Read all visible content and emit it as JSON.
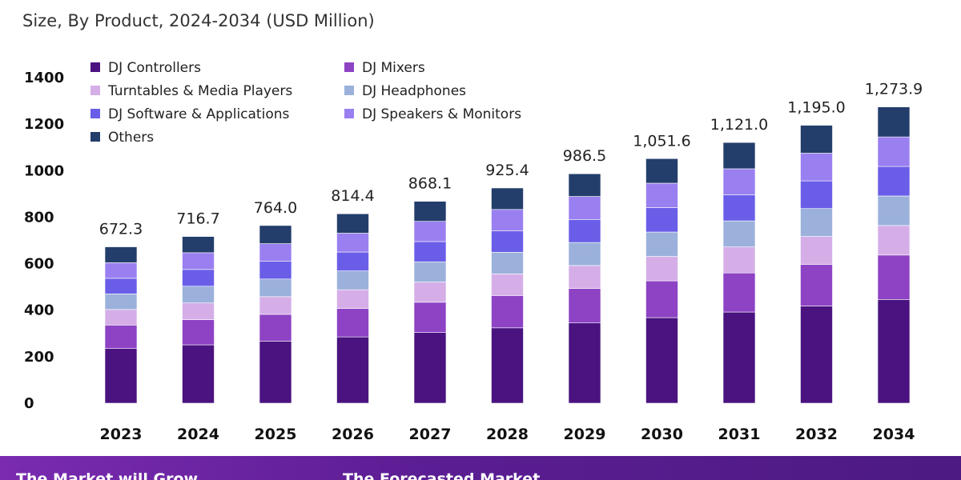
{
  "subtitle": "Size, By Product, 2024-2034 (USD Million)",
  "chart_data": {
    "type": "bar",
    "stacked": true,
    "title": "",
    "subtitle": "Size, By Product, 2024-2034 (USD Million)",
    "xlabel": "",
    "ylabel": "",
    "ylim": [
      0,
      1400
    ],
    "yticks": [
      0,
      200,
      400,
      600,
      800,
      1000,
      1200,
      1400
    ],
    "grid": false,
    "legend_position": "top-left",
    "categories": [
      "2023",
      "2024",
      "2025",
      "2026",
      "2027",
      "2028",
      "2029",
      "2030",
      "2031",
      "2032",
      "2034"
    ],
    "totals": [
      "672.3",
      "716.7",
      "764.0",
      "814.4",
      "868.1",
      "925.4",
      "986.5",
      "1,051.6",
      "1,121.0",
      "1,195.0",
      "1,273.9"
    ],
    "series": [
      {
        "name": "DJ Controllers",
        "color": "#4a1380",
        "values": [
          235,
          251,
          267,
          285,
          304,
          324,
          345,
          368,
          392,
          418,
          446
        ]
      },
      {
        "name": "DJ Mixers",
        "color": "#8d43c4",
        "values": [
          101,
          108,
          115,
          122,
          130,
          139,
          148,
          158,
          168,
          179,
          191
        ]
      },
      {
        "name": "Turntables & Media Players",
        "color": "#d5aee8",
        "values": [
          67,
          72,
          76,
          81,
          87,
          93,
          99,
          105,
          112,
          120,
          127
        ]
      },
      {
        "name": "DJ Headphones",
        "color": "#9bb1dc",
        "values": [
          67,
          72,
          76,
          81,
          87,
          93,
          99,
          105,
          112,
          120,
          127
        ]
      },
      {
        "name": "DJ Software & Applications",
        "color": "#6a5ee8",
        "values": [
          67,
          72,
          76,
          81,
          87,
          92,
          99,
          105,
          112,
          119,
          127
        ]
      },
      {
        "name": "DJ Speakers & Monitors",
        "color": "#9a7ff0",
        "values": [
          67,
          72,
          76,
          81,
          87,
          92,
          99,
          105,
          112,
          119,
          127
        ]
      },
      {
        "name": "Others",
        "color": "#233e6b",
        "values": [
          68.3,
          69.7,
          78,
          83.4,
          86.1,
          92.4,
          97.5,
          105.6,
          113,
          120,
          128.9
        ]
      }
    ]
  },
  "banner": {
    "text_1": "The Market will Grow",
    "text_2": "The Forecasted Market"
  }
}
